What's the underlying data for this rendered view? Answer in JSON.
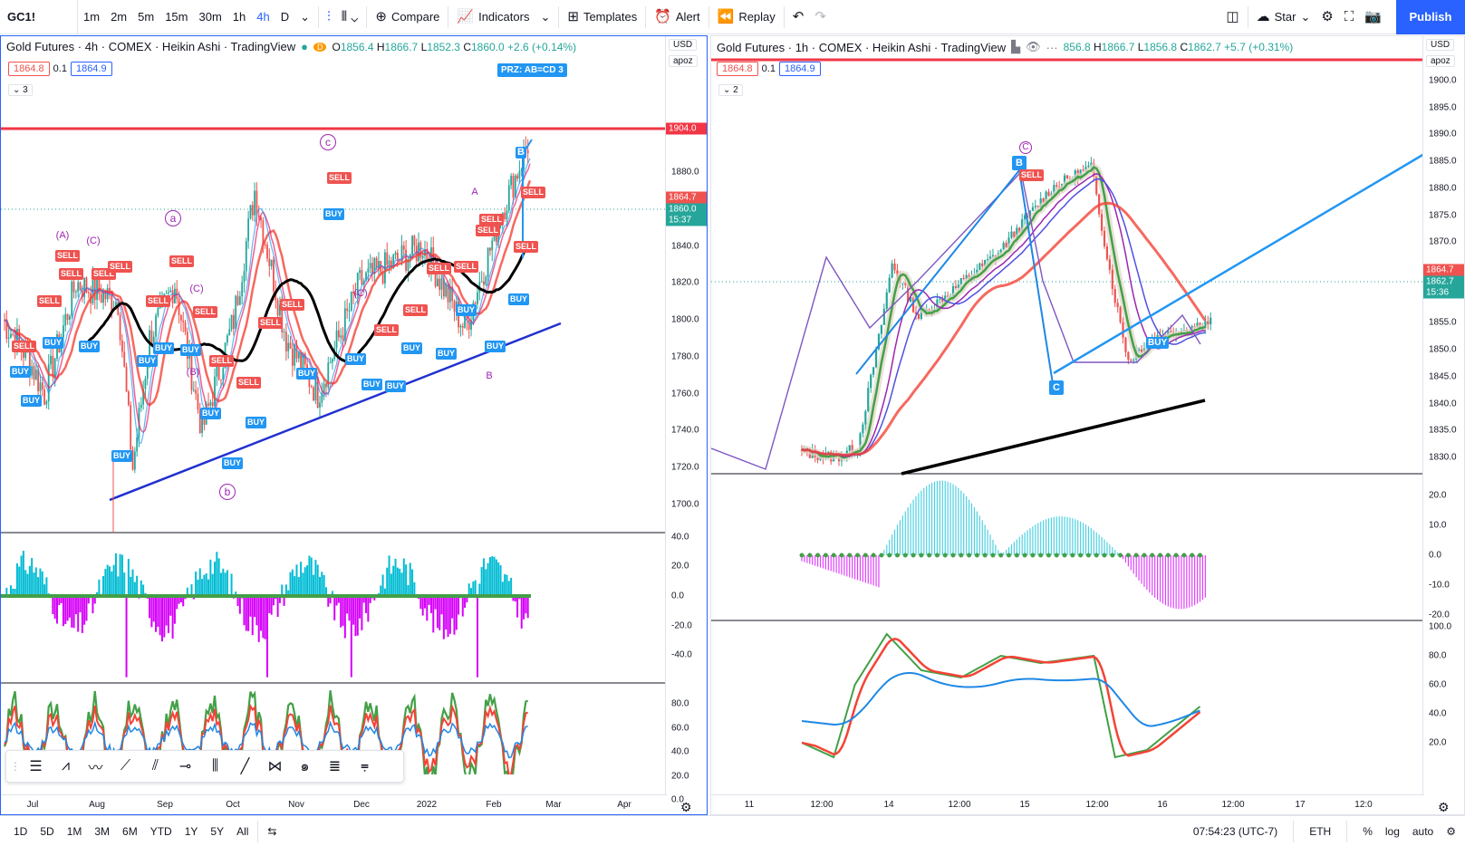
{
  "toolbar": {
    "symbol": "GC1!",
    "intervals": [
      "1m",
      "2m",
      "5m",
      "15m",
      "30m",
      "1h",
      "4h",
      "D"
    ],
    "active_interval": "4h",
    "compare": "Compare",
    "indicators": "Indicators",
    "templates": "Templates",
    "alert": "Alert",
    "replay": "Replay",
    "layout_name": "Star",
    "publish": "Publish"
  },
  "left_chart": {
    "title": "Gold Futures · 4h · COMEX · Heikin Ashi · TradingView",
    "badge": "D",
    "ohlc": {
      "o": "1856.4",
      "h": "1866.7",
      "l": "1852.3",
      "c": "1860.0",
      "chg": "+2.6 (+0.14%)"
    },
    "sell_price": "1864.8",
    "spread": "0.1",
    "buy_price": "1864.9",
    "collapse": "3",
    "currency": "USD",
    "scale_mode": "apoz",
    "prz_label": "PRZ: AB=CD 3",
    "hline_price": "1904.0",
    "last_price": "1864.7",
    "close_price": "1860.0",
    "countdown": "15:37",
    "price_ticks": [
      "1880.0",
      "1860.0",
      "1840.0",
      "1820.0",
      "1800.0",
      "1780.0",
      "1760.0",
      "1740.0",
      "1720.0",
      "1700.0"
    ],
    "osc_ticks": [
      "40.0",
      "20.0",
      "0.0",
      "-20.0",
      "-40.0"
    ],
    "rsi_ticks": [
      "80.0",
      "60.0",
      "40.0",
      "20.0",
      "0.0"
    ],
    "time_ticks": [
      "Jul",
      "Aug",
      "Sep",
      "Oct",
      "Nov",
      "Dec",
      "2022",
      "Feb",
      "Mar",
      "Apr"
    ],
    "wave_labels": [
      "a",
      "b",
      "c",
      "A",
      "B",
      "(A)",
      "(C)",
      "(B)"
    ],
    "signals": {
      "sell": "SELL",
      "buy": "BUY",
      "b": "B"
    }
  },
  "right_chart": {
    "title": "Gold Futures · 1h · COMEX · Heikin Ashi · TradingView",
    "ohlc": {
      "h": "1866.7",
      "l": "1856.8",
      "c": "1862.7",
      "chg": "+5.7 (+0.31%)",
      "o_partial": "856.8"
    },
    "sell_price": "1864.8",
    "spread": "0.1",
    "buy_price": "1864.9",
    "collapse": "2",
    "currency": "USD",
    "scale_mode": "apoz",
    "last_price": "1864.7",
    "close_price": "1862.7",
    "countdown": "15:36",
    "price_ticks": [
      "1900.0",
      "1895.0",
      "1890.0",
      "1885.0",
      "1880.0",
      "1875.0",
      "1870.0",
      "1865.0",
      "1860.0",
      "1855.0",
      "1850.0",
      "1845.0",
      "1840.0",
      "1835.0",
      "1830.0"
    ],
    "osc_ticks": [
      "20.0",
      "10.0",
      "0.0",
      "-10.0",
      "-20.0"
    ],
    "rsi_ticks": [
      "100.0",
      "80.0",
      "60.0",
      "40.0",
      "20.0"
    ],
    "time_ticks": [
      "11",
      "12:00",
      "14",
      "12:00",
      "15",
      "12:00",
      "16",
      "12:00",
      "17",
      "12:0"
    ],
    "point_labels": [
      "B",
      "C"
    ],
    "wave_label": "C",
    "signals": {
      "sell": "SELL",
      "buy": "BUY"
    }
  },
  "bottombar": {
    "ranges": [
      "1D",
      "5D",
      "1M",
      "3M",
      "6M",
      "YTD",
      "1Y",
      "5Y",
      "All"
    ],
    "clock": "07:54:23 (UTC-7)",
    "session": "ETH",
    "percent": "%",
    "log": "log",
    "auto": "auto"
  },
  "colors": {
    "accent": "#2962ff",
    "up": "#26a69a",
    "down": "#ef5350",
    "hline": "#f23645"
  }
}
